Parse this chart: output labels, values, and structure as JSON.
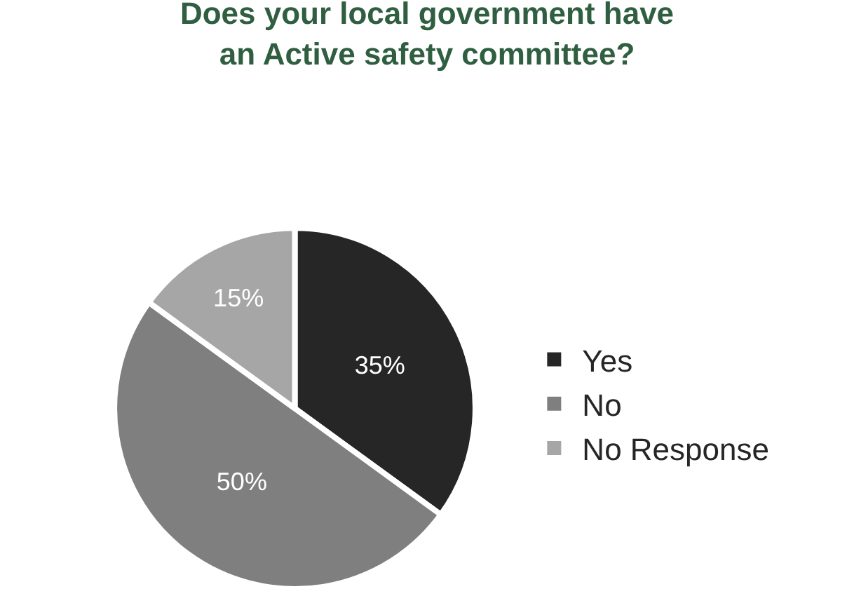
{
  "chart_data": {
    "type": "pie",
    "title": "Does your local government have\nan Active safety committee?",
    "categories": [
      "Yes",
      "No",
      "No Response"
    ],
    "values": [
      35,
      50,
      15
    ],
    "colors": [
      "#262626",
      "#7f7f7f",
      "#a6a6a6"
    ],
    "value_labels": [
      "35%",
      "50%",
      "15%"
    ],
    "legend": "right"
  }
}
